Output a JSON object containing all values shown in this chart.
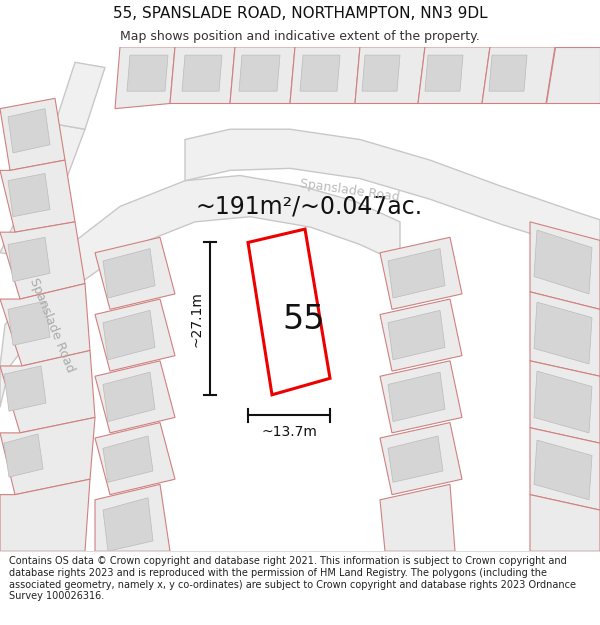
{
  "title": "55, SPANSLADE ROAD, NORTHAMPTON, NN3 9DL",
  "subtitle": "Map shows position and indicative extent of the property.",
  "footer": "Contains OS data © Crown copyright and database right 2021. This information is subject to Crown copyright and database rights 2023 and is reproduced with the permission of HM Land Registry. The polygons (including the associated geometry, namely x, y co-ordinates) are subject to Crown copyright and database rights 2023 Ordnance Survey 100026316.",
  "area_label": "~191m²/~0.047ac.",
  "width_label": "~13.7m",
  "height_label": "~27.1m",
  "property_number": "55",
  "background_color": "#ffffff",
  "map_bg": "#f7f7f7",
  "plot_fill": "#ebebeb",
  "plot_ec": "#d08080",
  "road_fill": "#f0f0f0",
  "road_ec": "#c8c8c8",
  "bld_fill": "#d5d5d5",
  "bld_ec": "#bbbbbb",
  "prop_fill": "#ffffff",
  "prop_ec": "#ee0000",
  "dim_color": "#111111",
  "road_text_color": "#aaaaaa",
  "title_fontsize": 11,
  "subtitle_fontsize": 9,
  "footer_fontsize": 7,
  "area_fontsize": 17,
  "prop_label_fontsize": 24,
  "dim_fontsize": 10,
  "road_fontsize": 9
}
